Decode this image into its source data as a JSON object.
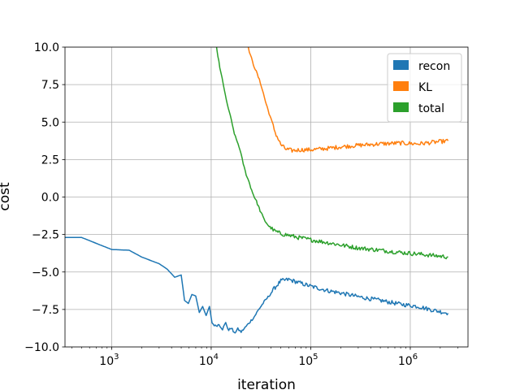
{
  "chart_data": {
    "type": "line",
    "title": "",
    "xlabel": "iteration",
    "ylabel": "cost",
    "xscale": "log",
    "xlim": [
      340,
      3800000
    ],
    "ylim": [
      -10,
      10
    ],
    "x_ticks": [
      {
        "value": 1000,
        "base": "10",
        "exp": "3"
      },
      {
        "value": 10000,
        "base": "10",
        "exp": "4"
      },
      {
        "value": 100000,
        "base": "10",
        "exp": "5"
      },
      {
        "value": 1000000,
        "base": "10",
        "exp": "6"
      }
    ],
    "y_ticks": [
      {
        "value": 10,
        "label": "10.0"
      },
      {
        "value": 7.5,
        "label": "7.5"
      },
      {
        "value": 5,
        "label": "5.0"
      },
      {
        "value": 2.5,
        "label": "2.5"
      },
      {
        "value": 0,
        "label": "0.0"
      },
      {
        "value": -2.5,
        "label": "−2.5"
      },
      {
        "value": -5,
        "label": "−5.0"
      },
      {
        "value": -7.5,
        "label": "−7.5"
      },
      {
        "value": -10,
        "label": "−10.0"
      }
    ],
    "grid": true,
    "legend": "top-right",
    "series": [
      {
        "name": "recon",
        "color": "#1f77b4",
        "points": [
          [
            340,
            -2.7
          ],
          [
            500,
            -2.7
          ],
          [
            1000,
            -3.5
          ],
          [
            1500,
            -3.55
          ],
          [
            2000,
            -4.0
          ],
          [
            3000,
            -4.45
          ],
          [
            3600,
            -4.8
          ],
          [
            4300,
            -5.35
          ],
          [
            5000,
            -5.2
          ],
          [
            5400,
            -6.9
          ],
          [
            5900,
            -7.1
          ],
          [
            6400,
            -6.5
          ],
          [
            7000,
            -6.6
          ],
          [
            7600,
            -7.7
          ],
          [
            8200,
            -7.3
          ],
          [
            8900,
            -7.9
          ],
          [
            9600,
            -7.3
          ],
          [
            10200,
            -8.4
          ],
          [
            11000,
            -8.6
          ],
          [
            12000,
            -8.5
          ],
          [
            13000,
            -8.8
          ],
          [
            14000,
            -8.4
          ],
          [
            15000,
            -8.9
          ],
          [
            16000,
            -8.7
          ],
          [
            17000,
            -9.1
          ],
          [
            18500,
            -8.8
          ],
          [
            20000,
            -9.0
          ],
          [
            22000,
            -8.7
          ],
          [
            24000,
            -8.4
          ],
          [
            27000,
            -8.0
          ],
          [
            30000,
            -7.5
          ],
          [
            34000,
            -7.0
          ],
          [
            38000,
            -6.6
          ],
          [
            43000,
            -6.1
          ],
          [
            50000,
            -5.6
          ],
          [
            60000,
            -5.5
          ],
          [
            75000,
            -5.7
          ],
          [
            100000,
            -5.95
          ],
          [
            150000,
            -6.25
          ],
          [
            200000,
            -6.4
          ],
          [
            300000,
            -6.65
          ],
          [
            500000,
            -6.9
          ],
          [
            800000,
            -7.15
          ],
          [
            1200000,
            -7.3
          ],
          [
            1700000,
            -7.55
          ],
          [
            2400000,
            -7.75
          ]
        ]
      },
      {
        "name": "KL",
        "color": "#ff7f0e",
        "points": [
          [
            23000,
            10.2
          ],
          [
            26000,
            9.0
          ],
          [
            29000,
            8.2
          ],
          [
            32000,
            7.4
          ],
          [
            35000,
            6.4
          ],
          [
            39000,
            5.4
          ],
          [
            44000,
            4.3
          ],
          [
            50000,
            3.5
          ],
          [
            56000,
            3.2
          ],
          [
            65000,
            3.1
          ],
          [
            80000,
            3.15
          ],
          [
            100000,
            3.15
          ],
          [
            150000,
            3.25
          ],
          [
            200000,
            3.35
          ],
          [
            300000,
            3.45
          ],
          [
            500000,
            3.55
          ],
          [
            800000,
            3.6
          ],
          [
            1200000,
            3.55
          ],
          [
            1700000,
            3.65
          ],
          [
            2400000,
            3.75
          ]
        ]
      },
      {
        "name": "total",
        "color": "#2ca02c",
        "points": [
          [
            11200,
            10.2
          ],
          [
            12200,
            8.6
          ],
          [
            13200,
            7.6
          ],
          [
            14200,
            6.4
          ],
          [
            15200,
            5.7
          ],
          [
            16300,
            4.8
          ],
          [
            17500,
            4.0
          ],
          [
            19000,
            3.4
          ],
          [
            20500,
            2.5
          ],
          [
            22000,
            1.7
          ],
          [
            24000,
            1.0
          ],
          [
            26000,
            0.3
          ],
          [
            28500,
            -0.3
          ],
          [
            31000,
            -0.9
          ],
          [
            34000,
            -1.5
          ],
          [
            38000,
            -1.95
          ],
          [
            43000,
            -2.25
          ],
          [
            50000,
            -2.45
          ],
          [
            60000,
            -2.55
          ],
          [
            75000,
            -2.7
          ],
          [
            100000,
            -2.85
          ],
          [
            150000,
            -3.05
          ],
          [
            200000,
            -3.2
          ],
          [
            300000,
            -3.4
          ],
          [
            500000,
            -3.55
          ],
          [
            800000,
            -3.7
          ],
          [
            1200000,
            -3.8
          ],
          [
            1700000,
            -3.9
          ],
          [
            2400000,
            -4.0
          ]
        ]
      }
    ]
  }
}
